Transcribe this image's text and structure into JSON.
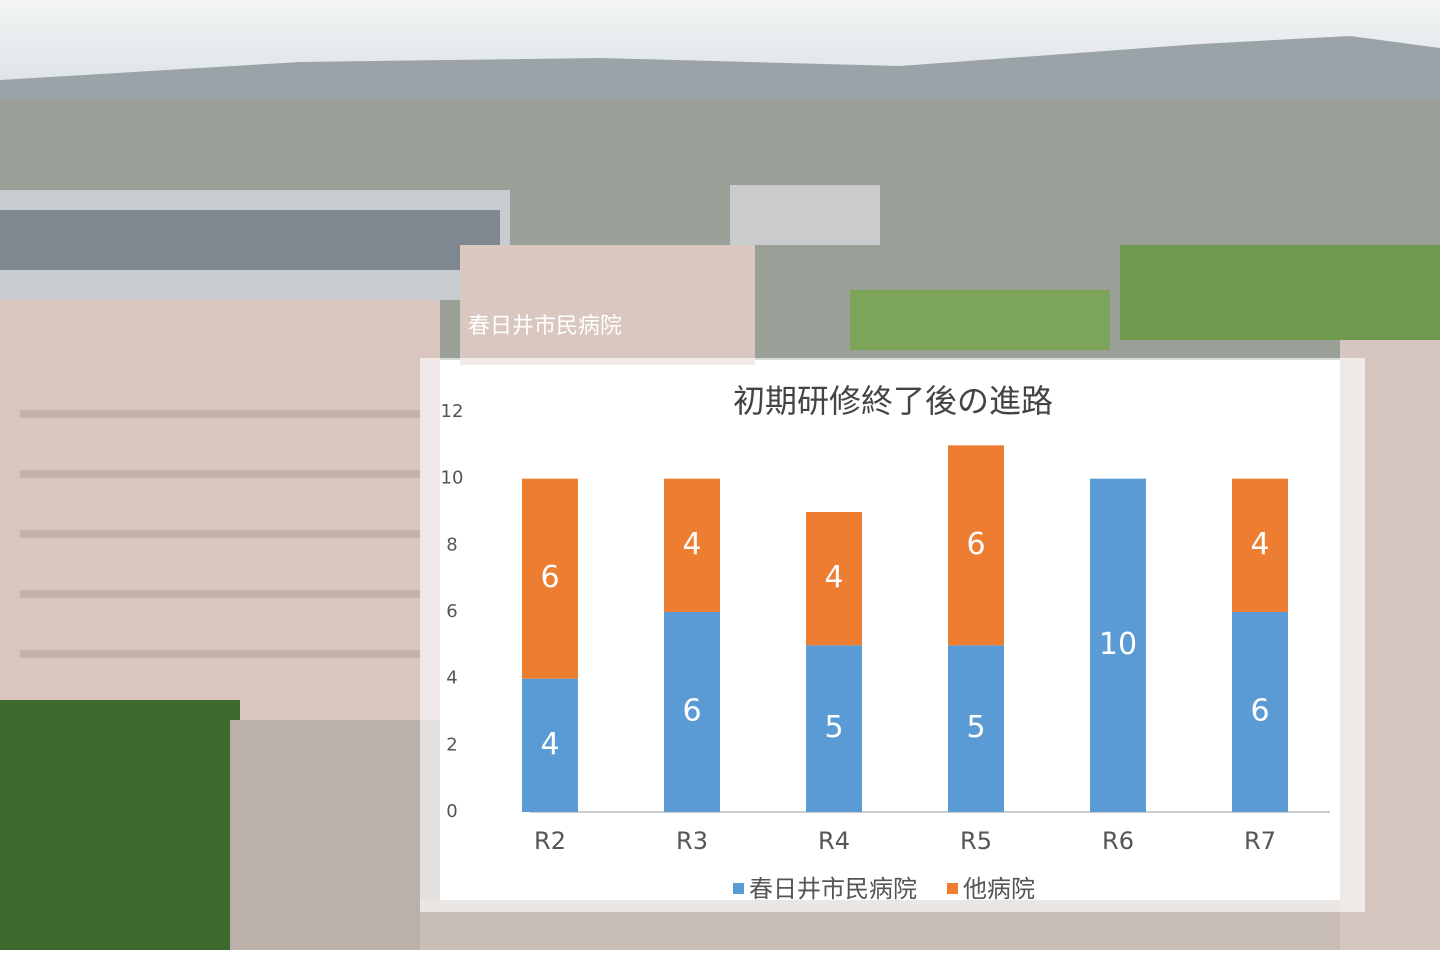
{
  "background": {
    "sign": "春日井市民病院"
  },
  "chart_data": {
    "type": "stacked_bar",
    "title": "初期研修終了後の進路",
    "categories": [
      "R2",
      "R3",
      "R4",
      "R5",
      "R6",
      "R7"
    ],
    "series": [
      {
        "name": "春日井市民病院",
        "color": "#5b9bd5",
        "values": [
          4,
          6,
          5,
          5,
          10,
          6
        ]
      },
      {
        "name": "他病院",
        "color": "#ed7d31",
        "values": [
          6,
          4,
          4,
          6,
          null,
          4
        ]
      }
    ],
    "ylim": [
      0,
      12
    ],
    "yticks": [
      0,
      2,
      4,
      6,
      8,
      10,
      12
    ],
    "grid": false,
    "legend": "bottom"
  }
}
